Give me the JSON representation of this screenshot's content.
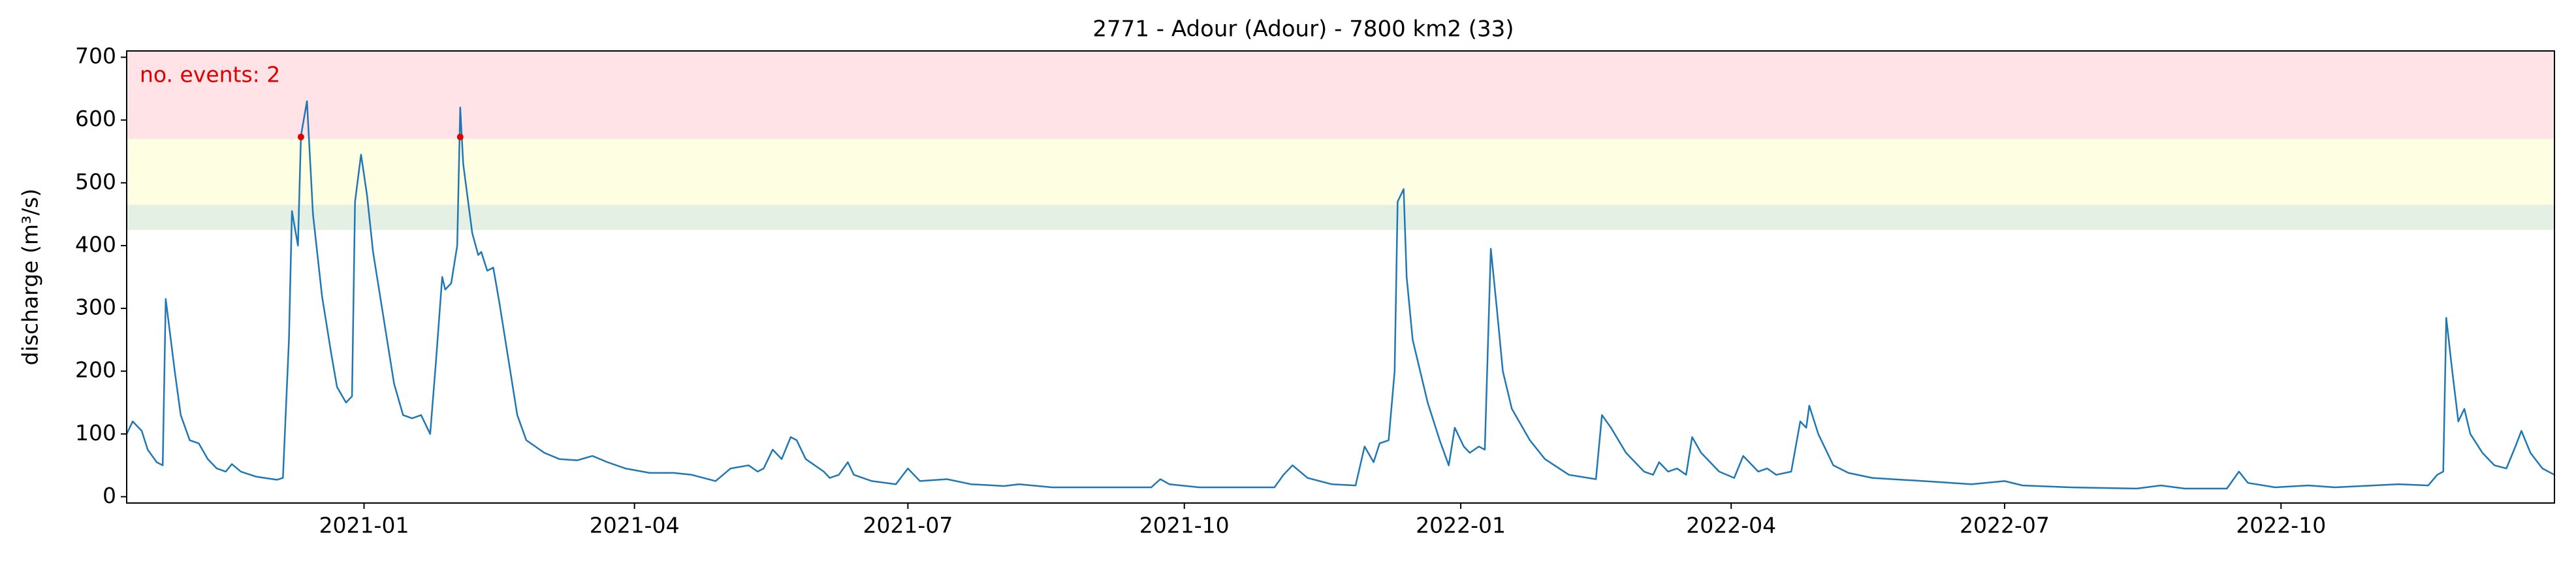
{
  "chart_data": {
    "type": "line",
    "title": "2771 - Adour (Adour) - 7800 km2 (33)",
    "y_label": "discharge (m³/s)",
    "annotation": "no. events: 2",
    "xlim": [
      "2020-10-14",
      "2022-12-31"
    ],
    "ylim": [
      -10,
      710
    ],
    "xticks": [
      {
        "value": "2021-01-01",
        "label": "2021-01"
      },
      {
        "value": "2021-04-01",
        "label": "2021-04"
      },
      {
        "value": "2021-07-01",
        "label": "2021-07"
      },
      {
        "value": "2021-10-01",
        "label": "2021-10"
      },
      {
        "value": "2022-01-01",
        "label": "2022-01"
      },
      {
        "value": "2022-04-01",
        "label": "2022-04"
      },
      {
        "value": "2022-07-01",
        "label": "2022-07"
      },
      {
        "value": "2022-10-01",
        "label": "2022-10"
      }
    ],
    "yticks": [
      0,
      100,
      200,
      300,
      400,
      500,
      600,
      700
    ],
    "bands": [
      {
        "from": 425,
        "to": 465,
        "color": "#e3f0e3"
      },
      {
        "from": 465,
        "to": 570,
        "color": "#fefee3"
      },
      {
        "from": 570,
        "to": 710,
        "color": "#ffe3e6"
      }
    ],
    "x": [
      "2020-10-14",
      "2020-10-16",
      "2020-10-19",
      "2020-10-21",
      "2020-10-24",
      "2020-10-26",
      "2020-10-27",
      "2020-10-30",
      "2020-11-01",
      "2020-11-04",
      "2020-11-07",
      "2020-11-10",
      "2020-11-13",
      "2020-11-16",
      "2020-11-18",
      "2020-11-21",
      "2020-11-26",
      "2020-12-03",
      "2020-12-05",
      "2020-12-07",
      "2020-12-08",
      "2020-12-10",
      "2020-12-11",
      "2020-12-13",
      "2020-12-15",
      "2020-12-18",
      "2020-12-21",
      "2020-12-23",
      "2020-12-26",
      "2020-12-28",
      "2020-12-29",
      "2020-12-31",
      "2021-01-02",
      "2021-01-04",
      "2021-01-07",
      "2021-01-11",
      "2021-01-14",
      "2021-01-17",
      "2021-01-20",
      "2021-01-23",
      "2021-01-25",
      "2021-01-27",
      "2021-01-28",
      "2021-01-30",
      "2021-02-01",
      "2021-02-02",
      "2021-02-03",
      "2021-02-06",
      "2021-02-08",
      "2021-02-09",
      "2021-02-11",
      "2021-02-13",
      "2021-02-15",
      "2021-02-18",
      "2021-02-21",
      "2021-02-24",
      "2021-03-02",
      "2021-03-07",
      "2021-03-13",
      "2021-03-18",
      "2021-03-23",
      "2021-03-29",
      "2021-04-06",
      "2021-04-14",
      "2021-04-20",
      "2021-04-28",
      "2021-05-03",
      "2021-05-09",
      "2021-05-12",
      "2021-05-14",
      "2021-05-17",
      "2021-05-20",
      "2021-05-23",
      "2021-05-25",
      "2021-05-28",
      "2021-06-03",
      "2021-06-05",
      "2021-06-08",
      "2021-06-11",
      "2021-06-13",
      "2021-06-19",
      "2021-06-27",
      "2021-07-01",
      "2021-07-05",
      "2021-07-14",
      "2021-07-22",
      "2021-08-02",
      "2021-08-07",
      "2021-08-18",
      "2021-09-20",
      "2021-09-23",
      "2021-09-26",
      "2021-10-06",
      "2021-10-31",
      "2021-11-03",
      "2021-11-06",
      "2021-11-11",
      "2021-11-19",
      "2021-11-27",
      "2021-11-30",
      "2021-12-03",
      "2021-12-05",
      "2021-12-08",
      "2021-12-10",
      "2021-12-11",
      "2021-12-13",
      "2021-12-14",
      "2021-12-16",
      "2021-12-21",
      "2021-12-25",
      "2021-12-28",
      "2021-12-30",
      "2022-01-02",
      "2022-01-04",
      "2022-01-07",
      "2022-01-09",
      "2022-01-11",
      "2022-01-13",
      "2022-01-15",
      "2022-01-18",
      "2022-01-24",
      "2022-01-29",
      "2022-02-06",
      "2022-02-15",
      "2022-02-17",
      "2022-02-20",
      "2022-02-25",
      "2022-03-03",
      "2022-03-06",
      "2022-03-08",
      "2022-03-11",
      "2022-03-14",
      "2022-03-17",
      "2022-03-19",
      "2022-03-22",
      "2022-03-28",
      "2022-04-02",
      "2022-04-05",
      "2022-04-07",
      "2022-04-10",
      "2022-04-13",
      "2022-04-16",
      "2022-04-21",
      "2022-04-24",
      "2022-04-26",
      "2022-04-27",
      "2022-04-30",
      "2022-05-05",
      "2022-05-10",
      "2022-05-18",
      "2022-06-04",
      "2022-06-20",
      "2022-07-01",
      "2022-07-07",
      "2022-07-23",
      "2022-08-14",
      "2022-08-22",
      "2022-08-30",
      "2022-09-13",
      "2022-09-17",
      "2022-09-20",
      "2022-09-29",
      "2022-10-10",
      "2022-10-19",
      "2022-11-09",
      "2022-11-19",
      "2022-11-22",
      "2022-11-24",
      "2022-11-25",
      "2022-11-27",
      "2022-11-29",
      "2022-12-01",
      "2022-12-03",
      "2022-12-07",
      "2022-12-11",
      "2022-12-15",
      "2022-12-18",
      "2022-12-20",
      "2022-12-23",
      "2022-12-27",
      "2022-12-31"
    ],
    "series": [
      {
        "color": "#1f77b4",
        "values": [
          100,
          120,
          105,
          75,
          55,
          50,
          315,
          200,
          130,
          90,
          85,
          60,
          45,
          40,
          52,
          40,
          32,
          27,
          30,
          250,
          455,
          400,
          575,
          630,
          450,
          320,
          230,
          175,
          150,
          160,
          470,
          545,
          480,
          390,
          300,
          180,
          130,
          125,
          130,
          100,
          220,
          350,
          330,
          340,
          400,
          620,
          530,
          420,
          385,
          390,
          360,
          365,
          310,
          220,
          130,
          90,
          70,
          60,
          58,
          65,
          55,
          45,
          38,
          38,
          35,
          25,
          45,
          50,
          40,
          45,
          75,
          60,
          95,
          90,
          60,
          40,
          30,
          35,
          55,
          35,
          25,
          20,
          45,
          25,
          28,
          20,
          17,
          20,
          15,
          15,
          28,
          20,
          15,
          15,
          35,
          50,
          30,
          20,
          18,
          80,
          55,
          85,
          90,
          200,
          470,
          490,
          350,
          250,
          150,
          90,
          50,
          110,
          80,
          70,
          80,
          75,
          395,
          300,
          200,
          140,
          90,
          60,
          35,
          28,
          130,
          110,
          70,
          40,
          35,
          55,
          40,
          45,
          35,
          95,
          70,
          40,
          30,
          65,
          55,
          40,
          45,
          35,
          40,
          120,
          110,
          145,
          100,
          50,
          38,
          30,
          25,
          20,
          25,
          18,
          15,
          13,
          18,
          13,
          13,
          40,
          22,
          15,
          18,
          15,
          20,
          18,
          35,
          40,
          285,
          200,
          120,
          140,
          100,
          70,
          50,
          45,
          80,
          105,
          70,
          45,
          35
        ]
      }
    ],
    "events": {
      "color": "#e00000",
      "x": [
        "2020-12-11",
        "2021-02-02"
      ],
      "values": [
        573,
        573
      ]
    }
  }
}
